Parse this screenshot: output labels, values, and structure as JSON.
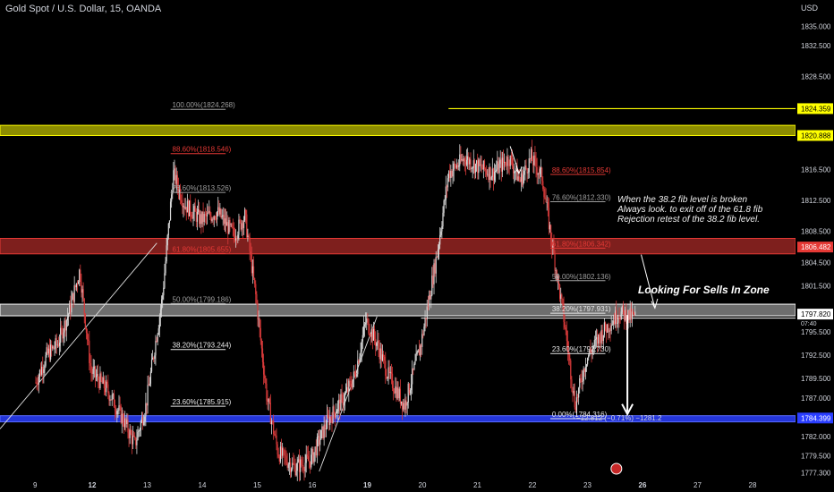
{
  "header": {
    "symbol": "Gold Spot / U.S. Dollar, 15, OANDA",
    "currency": "USD"
  },
  "annotations": {
    "note_lines": [
      "When the 38.2 fib level is broken",
      "Always look. to exit off of the 61.8 fib",
      "Rejection retest of the 38.2 fib level."
    ],
    "zone_label": "Looking For Sells In Zone",
    "measure_label": "−12.812 (−0.71%) −1281.2"
  },
  "colors": {
    "background": "#000000",
    "candle_up": "#d8d8d8",
    "candle_down": "#d83a3a",
    "yellow_zone": "#ffff00",
    "red_zone": "#e53935",
    "grey_zone": "#c8c8c8",
    "blue_zone": "#2a3eff",
    "fib_red": "#e53935",
    "fib_grey": "#9e9e9e"
  },
  "chart_data": {
    "type": "candlestick",
    "instrument": "XAU/USD",
    "timeframe": "15",
    "y_axis": {
      "range": [
        1776,
        1837
      ],
      "ticks": [
        "1835.000",
        "1832.500",
        "1828.500",
        "1824.359",
        "1820.888",
        "1816.500",
        "1812.500",
        "1808.500",
        "1806.482",
        "1804.500",
        "1801.500",
        "1797.820",
        "1795.500",
        "1792.500",
        "1789.500",
        "1787.000",
        "1784.399",
        "1782.000",
        "1779.500",
        "1777.300"
      ],
      "tick_values": [
        1835.0,
        1832.5,
        1828.5,
        1824.359,
        1820.888,
        1816.5,
        1812.5,
        1808.5,
        1806.482,
        1804.5,
        1801.5,
        1797.82,
        1795.5,
        1792.5,
        1789.5,
        1787.0,
        1784.399,
        1782.0,
        1779.5,
        1777.3
      ],
      "highlighted": [
        {
          "label": "1824.359",
          "value": 1824.359,
          "style": "yellow"
        },
        {
          "label": "1820.888",
          "value": 1820.888,
          "style": "yellow"
        },
        {
          "label": "1806.482",
          "value": 1806.482,
          "style": "red"
        },
        {
          "label": "1797.820",
          "value": 1797.82,
          "style": "white"
        },
        {
          "label": "1784.399",
          "value": 1784.399,
          "style": "blue"
        }
      ],
      "partial_label": "07:40"
    },
    "x_axis": {
      "labels": [
        "9",
        "12",
        "13",
        "14",
        "15",
        "16",
        "19",
        "20",
        "21",
        "22",
        "23",
        "26",
        "27",
        "28"
      ],
      "label_index": [
        0,
        1,
        2,
        3,
        4,
        5,
        6,
        7,
        8,
        9,
        10,
        11,
        12,
        13
      ]
    },
    "day_path": [
      {
        "day": "9",
        "points": [
          [
            0,
            1789.0
          ],
          [
            0.2,
            1792.5
          ],
          [
            0.4,
            1794.0
          ],
          [
            0.6,
            1798.0
          ],
          [
            0.8,
            1803.5
          ]
        ]
      },
      {
        "day": "12",
        "points": [
          [
            1.0,
            1790.5
          ],
          [
            1.3,
            1788.0
          ],
          [
            1.6,
            1784.0
          ],
          [
            1.8,
            1781.0
          ]
        ]
      },
      {
        "day": "13",
        "points": [
          [
            2.0,
            1786.0
          ],
          [
            2.3,
            1800.0
          ],
          [
            2.5,
            1816.0
          ],
          [
            2.7,
            1812.0
          ]
        ]
      },
      {
        "day": "14",
        "points": [
          [
            3.0,
            1810.0
          ],
          [
            3.3,
            1811.0
          ],
          [
            3.6,
            1808.0
          ],
          [
            3.8,
            1810.5
          ]
        ]
      },
      {
        "day": "15",
        "points": [
          [
            4.0,
            1800.0
          ],
          [
            4.2,
            1787.0
          ],
          [
            4.4,
            1780.0
          ],
          [
            4.7,
            1778.0
          ]
        ]
      },
      {
        "day": "16",
        "points": [
          [
            5.0,
            1779.0
          ],
          [
            5.3,
            1784.0
          ],
          [
            5.6,
            1787.0
          ],
          [
            5.8,
            1790.0
          ]
        ]
      },
      {
        "day": "19",
        "points": [
          [
            6.0,
            1797.0
          ],
          [
            6.2,
            1794.0
          ],
          [
            6.4,
            1790.0
          ],
          [
            6.7,
            1786.0
          ]
        ]
      },
      {
        "day": "20",
        "points": [
          [
            7.0,
            1794.0
          ],
          [
            7.3,
            1806.0
          ],
          [
            7.5,
            1816.0
          ],
          [
            7.8,
            1818.0
          ]
        ]
      },
      {
        "day": "21",
        "points": [
          [
            8.0,
            1817.0
          ],
          [
            8.3,
            1816.0
          ],
          [
            8.6,
            1818.0
          ],
          [
            8.8,
            1815.0
          ]
        ]
      },
      {
        "day": "22",
        "points": [
          [
            9.0,
            1818.0
          ],
          [
            9.2,
            1815.5
          ],
          [
            9.4,
            1806.0
          ],
          [
            9.6,
            1797.0
          ],
          [
            9.8,
            1786.0
          ]
        ]
      },
      {
        "day": "23",
        "points": [
          [
            10.0,
            1792.0
          ],
          [
            10.3,
            1795.5
          ],
          [
            10.6,
            1798.0
          ],
          [
            10.8,
            1797.5
          ]
        ]
      }
    ],
    "zones": [
      {
        "name": "yellow",
        "from": 1820.888,
        "to": 1822.2
      },
      {
        "name": "red",
        "from": 1805.6,
        "to": 1807.6
      },
      {
        "name": "grey",
        "from": 1797.6,
        "to": 1799.1
      },
      {
        "name": "blue",
        "from": 1783.9,
        "to": 1784.7
      }
    ],
    "fib_first": [
      {
        "label": "100.00%(1824.268)",
        "value": 1824.268,
        "color": "grey"
      },
      {
        "label": "88.60%(1818.546)",
        "value": 1818.546,
        "color": "red"
      },
      {
        "label": "76.60%(1813.526)",
        "value": 1813.526,
        "color": "grey"
      },
      {
        "label": "61.80%(1805.655)",
        "value": 1805.655,
        "color": "red"
      },
      {
        "label": "50.00%(1799.186)",
        "value": 1799.186,
        "color": "grey"
      },
      {
        "label": "38.20%(1793.244)",
        "value": 1793.244,
        "color": "white"
      },
      {
        "label": "23.60%(1785.915)",
        "value": 1785.915,
        "color": "white"
      }
    ],
    "fib_second": [
      {
        "label": "88.60%(1815.854)",
        "value": 1815.854,
        "color": "red"
      },
      {
        "label": "76.60%(1812.330)",
        "value": 1812.33,
        "color": "grey"
      },
      {
        "label": "61.80%(1806.342)",
        "value": 1806.342,
        "color": "red"
      },
      {
        "label": "50.00%(1802.136)",
        "value": 1802.136,
        "color": "grey"
      },
      {
        "label": "38.20%(1797.931)",
        "value": 1797.931,
        "color": "white"
      },
      {
        "label": "23.60%(1792.730)",
        "value": 1792.73,
        "color": "white"
      },
      {
        "label": "0.00%(1784.316)",
        "value": 1784.316,
        "color": "white"
      }
    ]
  }
}
